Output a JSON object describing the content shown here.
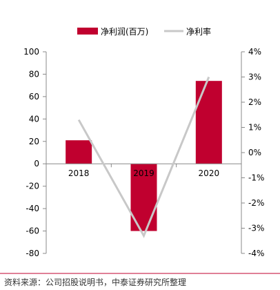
{
  "chart_data": {
    "type": "bar",
    "categories": [
      "2018",
      "2019",
      "2020"
    ],
    "series": [
      {
        "name": "净利润(百万)",
        "type": "bar",
        "axis": "left",
        "color": "#C0002F",
        "values": [
          21,
          -60,
          74
        ]
      },
      {
        "name": "净利率",
        "type": "line",
        "axis": "right",
        "color": "#C8C8C8",
        "values": [
          1.3,
          -3.3,
          3.0
        ]
      }
    ],
    "y_left": {
      "ylim": [
        -80,
        100
      ],
      "ticks": [
        "100",
        "80",
        "60",
        "40",
        "20",
        "0",
        "-20",
        "-40",
        "-60",
        "-80"
      ]
    },
    "y_right": {
      "ylim": [
        -4,
        4
      ],
      "ticks": [
        "4%",
        "3%",
        "2%",
        "1%",
        "0%",
        "-1%",
        "-2%",
        "-3%",
        "-4%"
      ]
    },
    "legend_position": "top-center",
    "grid": false,
    "source": "资料来源：公司招股说明书，中泰证券研究所整理",
    "accent_color": "#C0002F"
  }
}
